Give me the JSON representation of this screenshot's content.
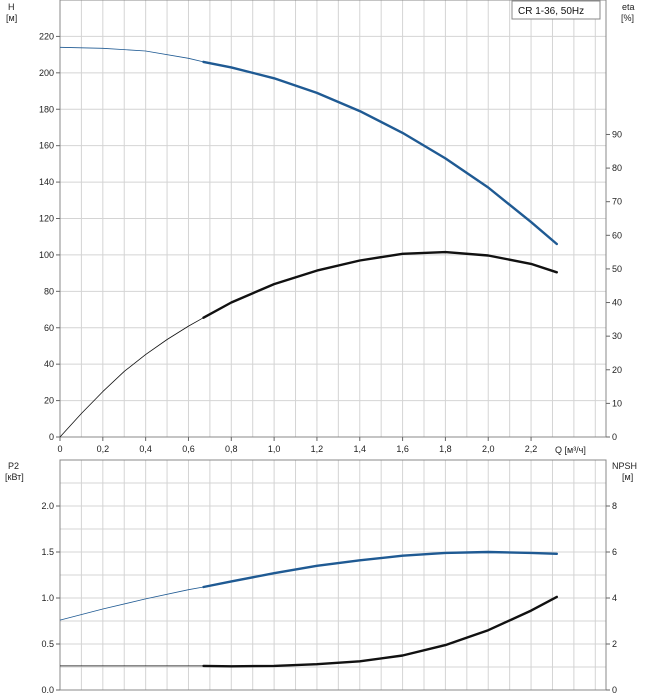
{
  "legend": "CR 1-36, 50Hz",
  "colors": {
    "head": "#1f5a93",
    "eta": "#111111",
    "p2": "#1f5a93",
    "npsh": "#111111",
    "grid": "#d4d4d4"
  },
  "chart_data": [
    {
      "type": "line",
      "panel": "top",
      "x_label": "Q [м³/ч]",
      "y_left_label": [
        "H",
        "[м]"
      ],
      "y_right_label": [
        "eta",
        "[%]"
      ],
      "x_range": [
        0,
        2.55
      ],
      "y_left_range": [
        0,
        240
      ],
      "y_right_range": [
        0,
        130
      ],
      "x_ticks": [
        "0",
        "0,2",
        "0,4",
        "0,6",
        "0,8",
        "1,0",
        "1,2",
        "1,4",
        "1,6",
        "1,8",
        "2,0",
        "2,2"
      ],
      "y_left_ticks": [
        "0",
        "20",
        "40",
        "60",
        "80",
        "100",
        "120",
        "140",
        "160",
        "180",
        "200",
        "220"
      ],
      "y_right_ticks": [
        "0",
        "10",
        "20",
        "30",
        "40",
        "50",
        "60",
        "70",
        "80",
        "90"
      ],
      "grid": true,
      "series": [
        {
          "key": "head",
          "axis": "left",
          "operating_from": 0.67,
          "x": [
            0,
            0.2,
            0.4,
            0.6,
            0.67,
            0.8,
            1.0,
            1.2,
            1.4,
            1.6,
            1.8,
            2.0,
            2.2,
            2.32
          ],
          "y": [
            214,
            213.5,
            212,
            208,
            206,
            203,
            197,
            189,
            179,
            167,
            153,
            137,
            118,
            106
          ]
        },
        {
          "key": "eta",
          "axis": "right",
          "operating_from": 0.67,
          "x": [
            0,
            0.1,
            0.2,
            0.3,
            0.4,
            0.5,
            0.6,
            0.67,
            0.8,
            1.0,
            1.2,
            1.4,
            1.6,
            1.8,
            2.0,
            2.2,
            2.32
          ],
          "y": [
            0,
            7,
            13.5,
            19.5,
            24.5,
            29,
            33,
            35.5,
            40,
            45.5,
            49.5,
            52.5,
            54.5,
            55,
            54,
            51.5,
            49
          ]
        }
      ]
    },
    {
      "type": "line",
      "panel": "bottom",
      "y_left_label": [
        "P2",
        "[кВт]"
      ],
      "y_right_label": [
        "NPSH",
        "[м]"
      ],
      "x_range": [
        0,
        2.55
      ],
      "y_left_range": [
        0,
        2.5
      ],
      "y_right_range": [
        0,
        10
      ],
      "y_left_ticks": [
        "0.0",
        "0.5",
        "1.0",
        "1.5",
        "2.0"
      ],
      "y_right_ticks": [
        "0",
        "2",
        "4",
        "6",
        "8"
      ],
      "grid": true,
      "series": [
        {
          "key": "p2",
          "axis": "left",
          "operating_from": 0.67,
          "x": [
            0,
            0.2,
            0.4,
            0.6,
            0.67,
            0.8,
            1.0,
            1.2,
            1.4,
            1.6,
            1.8,
            2.0,
            2.2,
            2.32
          ],
          "y": [
            0.76,
            0.88,
            0.99,
            1.09,
            1.12,
            1.18,
            1.27,
            1.35,
            1.41,
            1.46,
            1.49,
            1.5,
            1.49,
            1.48
          ]
        },
        {
          "key": "npsh",
          "axis": "right",
          "operating_from": 0.67,
          "x": [
            0,
            0.2,
            0.4,
            0.6,
            0.67,
            0.8,
            1.0,
            1.2,
            1.4,
            1.6,
            1.8,
            2.0,
            2.2,
            2.32
          ],
          "y": [
            1.05,
            1.05,
            1.05,
            1.05,
            1.05,
            1.03,
            1.05,
            1.12,
            1.25,
            1.5,
            1.95,
            2.6,
            3.45,
            4.05
          ]
        }
      ]
    }
  ]
}
